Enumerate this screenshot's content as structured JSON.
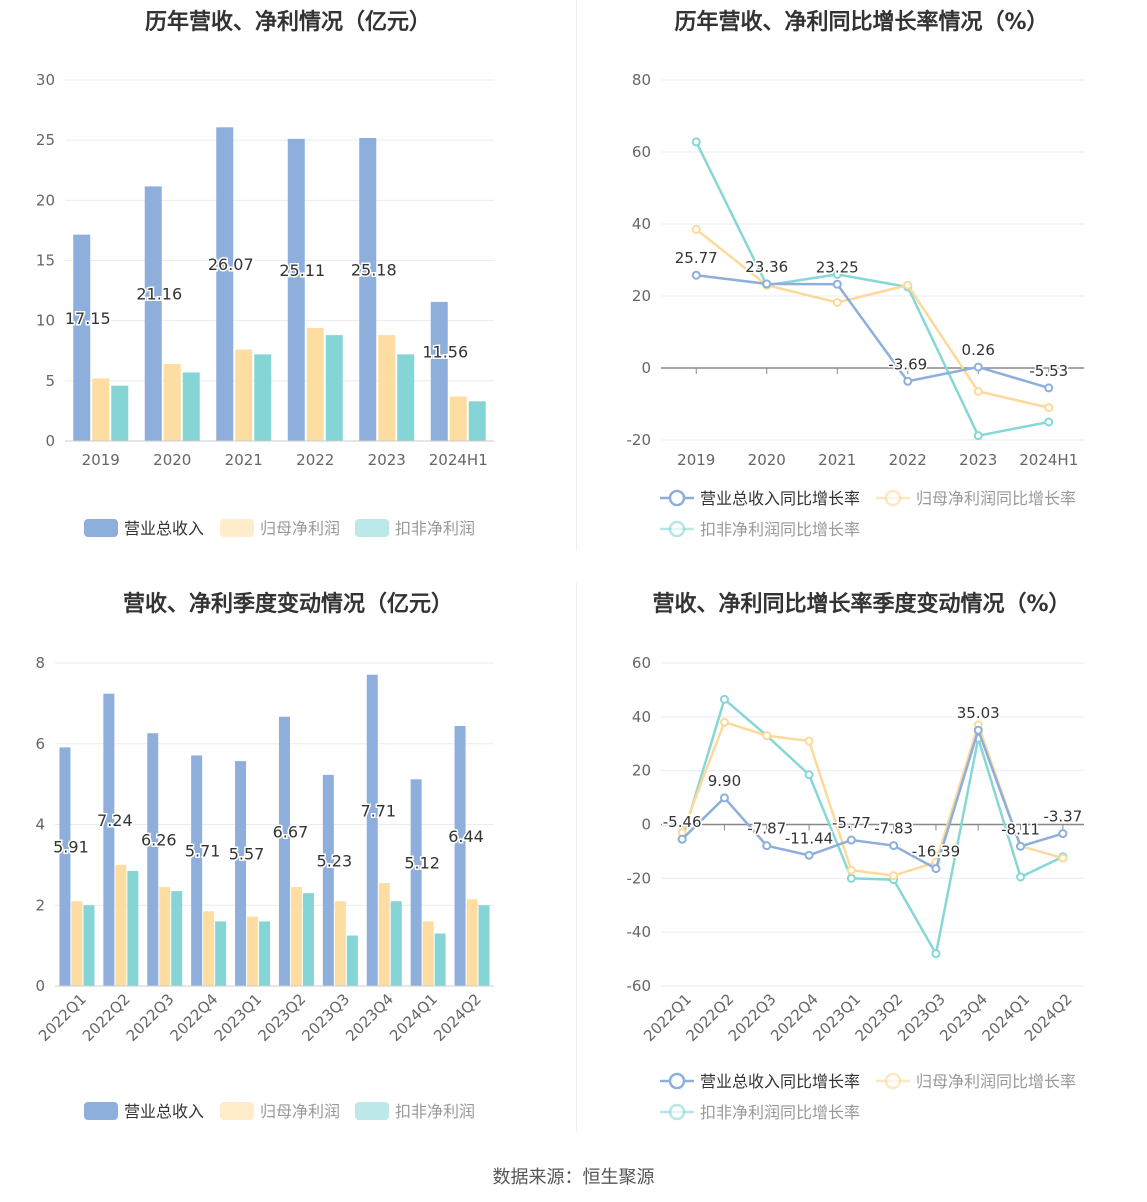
{
  "colors": {
    "revenue": "#8eafdc",
    "net_profit": "#fddda1",
    "deducted_profit": "#85d5d7",
    "revenue_line": "#8eafdc",
    "net_line": "#fdd99a",
    "deducted_line": "#86d7d6",
    "grid": "#e8ebf2",
    "axis_text": "#666666",
    "label_text": "#333333"
  },
  "source": "数据来源：恒生聚源",
  "chart_data": [
    {
      "type": "bar",
      "title": "历年营收、净利情况（亿元）",
      "categories": [
        "2019",
        "2020",
        "2021",
        "2022",
        "2023",
        "2024H1"
      ],
      "ylim": [
        0,
        30
      ],
      "yticks": [
        0,
        5,
        10,
        15,
        20,
        25,
        30
      ],
      "series": [
        {
          "name": "营业总收入",
          "values": [
            17.15,
            21.16,
            26.07,
            25.11,
            25.18,
            11.56
          ],
          "labels": [
            "17.15",
            "21.16",
            "26.07",
            "25.11",
            "25.18",
            "11.56"
          ]
        },
        {
          "name": "归母净利润",
          "values": [
            5.2,
            6.4,
            7.6,
            9.4,
            8.8,
            3.7
          ]
        },
        {
          "name": "扣非净利润",
          "values": [
            4.6,
            5.7,
            7.2,
            8.8,
            7.2,
            3.3
          ]
        }
      ],
      "legend": "bottom"
    },
    {
      "type": "line",
      "title": "历年营收、净利同比增长率情况（%）",
      "categories": [
        "2019",
        "2020",
        "2021",
        "2022",
        "2023",
        "2024H1"
      ],
      "ylim": [
        -20,
        80
      ],
      "yticks": [
        -20,
        0,
        20,
        40,
        60,
        80
      ],
      "series": [
        {
          "name": "营业总收入同比增长率",
          "values": [
            25.77,
            23.36,
            23.25,
            -3.69,
            0.26,
            -5.53
          ],
          "labels": [
            "25.77",
            "23.36",
            "23.25",
            "-3.69",
            "0.26",
            "-5.53"
          ]
        },
        {
          "name": "归母净利润同比增长率",
          "values": [
            38.5,
            23.0,
            18.2,
            23.0,
            -6.5,
            -11.0
          ]
        },
        {
          "name": "扣非净利润同比增长率",
          "values": [
            62.8,
            23.0,
            26.0,
            22.5,
            -18.8,
            -15.0
          ]
        }
      ],
      "legend": "bottom"
    },
    {
      "type": "bar",
      "title": "营收、净利季度变动情况（亿元）",
      "categories": [
        "2022Q1",
        "2022Q2",
        "2022Q3",
        "2022Q4",
        "2023Q1",
        "2023Q2",
        "2023Q3",
        "2023Q4",
        "2024Q1",
        "2024Q2"
      ],
      "ylim": [
        0,
        8
      ],
      "yticks": [
        0,
        2,
        4,
        6,
        8
      ],
      "series": [
        {
          "name": "营业总收入",
          "values": [
            5.91,
            7.24,
            6.26,
            5.71,
            5.57,
            6.67,
            5.23,
            7.71,
            5.12,
            6.44
          ],
          "labels": [
            "5.91",
            "7.24",
            "6.26",
            "5.71",
            "5.57",
            "6.67",
            "5.23",
            "7.71",
            "5.12",
            "6.44"
          ]
        },
        {
          "name": "归母净利润",
          "values": [
            2.1,
            3.0,
            2.45,
            1.85,
            1.72,
            2.45,
            2.1,
            2.55,
            1.6,
            2.15
          ]
        },
        {
          "name": "扣非净利润",
          "values": [
            2.0,
            2.85,
            2.35,
            1.6,
            1.6,
            2.3,
            1.25,
            2.1,
            1.3,
            2.0
          ]
        }
      ],
      "legend": "bottom"
    },
    {
      "type": "line",
      "title": "营收、净利同比增长率季度变动情况（%）",
      "categories": [
        "2022Q1",
        "2022Q2",
        "2022Q3",
        "2022Q4",
        "2023Q1",
        "2023Q2",
        "2023Q3",
        "2023Q4",
        "2024Q1",
        "2024Q2"
      ],
      "ylim": [
        -60,
        60
      ],
      "yticks": [
        -60,
        -40,
        -20,
        0,
        20,
        40,
        60
      ],
      "series": [
        {
          "name": "营业总收入同比增长率",
          "values": [
            -5.46,
            9.9,
            -7.87,
            -11.44,
            -5.77,
            -7.83,
            -16.39,
            35.03,
            -8.11,
            -3.37
          ],
          "labels": [
            "-5.46",
            "9.90",
            "-7.87",
            "-11.44",
            "-5.77",
            "-7.83",
            "-16.39",
            "35.03",
            "-8.11",
            "-3.37"
          ]
        },
        {
          "name": "归母净利润同比增长率",
          "values": [
            -3.0,
            38.0,
            33.0,
            31.0,
            -17.0,
            -19.0,
            -14.0,
            37.0,
            -8.0,
            -12.5
          ]
        },
        {
          "name": "扣非净利润同比增长率",
          "values": [
            -5.5,
            46.5,
            33.0,
            18.5,
            -20.0,
            -20.5,
            -48.0,
            32.0,
            -19.5,
            -12.0
          ]
        }
      ],
      "legend": "bottom"
    }
  ]
}
